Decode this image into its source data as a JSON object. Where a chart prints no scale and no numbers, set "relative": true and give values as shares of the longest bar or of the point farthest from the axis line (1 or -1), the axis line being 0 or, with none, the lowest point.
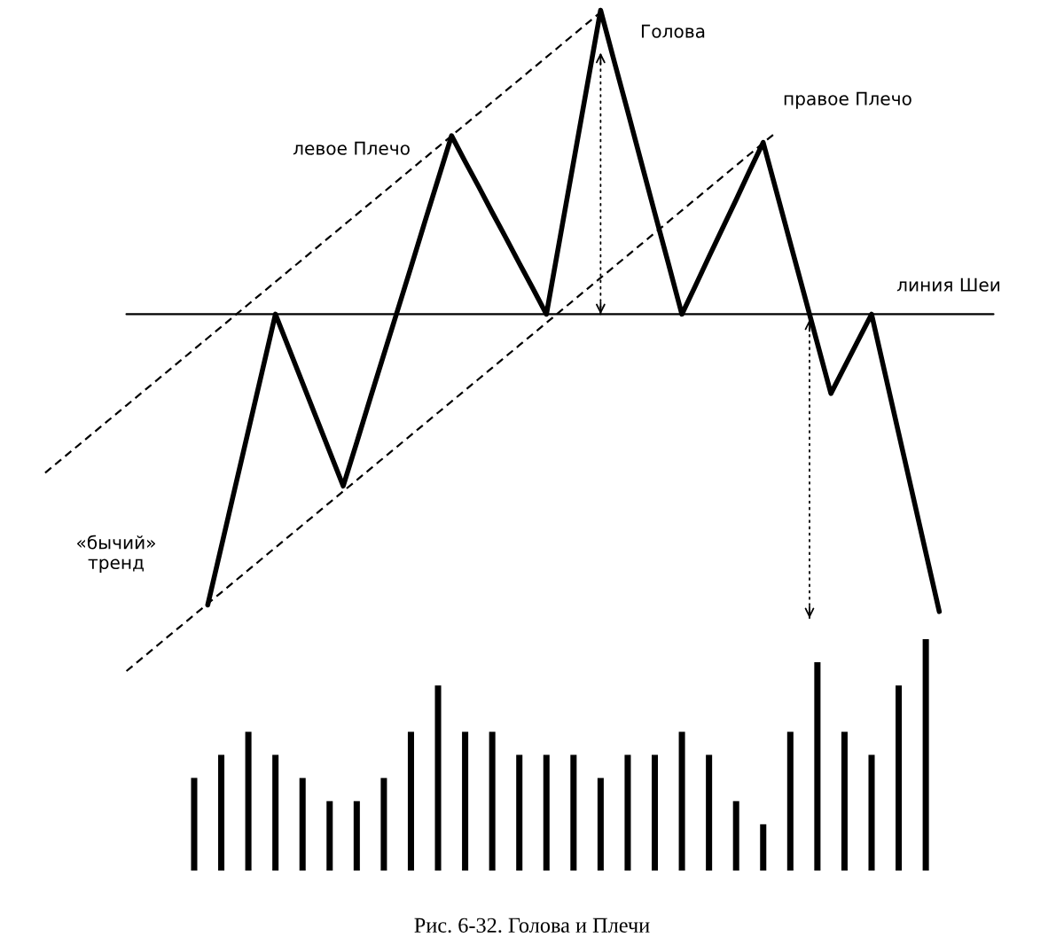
{
  "chart_data": [
    {
      "type": "line",
      "relative": true,
      "tick_labels": false,
      "categories": [
        null,
        null,
        null,
        null,
        null,
        null,
        null,
        null,
        null,
        null,
        null,
        null,
        null,
        null,
        null,
        null,
        null,
        null,
        null,
        null,
        null,
        null,
        null,
        null,
        null,
        null,
        null,
        null,
        null,
        null,
        null,
        null,
        null,
        null,
        null,
        null,
        null,
        null,
        null,
        null,
        null,
        null,
        null,
        null,
        null,
        null,
        null,
        null,
        null,
        null,
        null,
        null,
        null,
        null,
        null,
        null,
        null,
        null,
        null,
        null,
        null,
        null,
        null,
        null,
        null,
        null,
        null,
        null,
        null,
        null,
        null
      ],
      "series": [
        {
          "color": "#000000",
          "line_style": "solid",
          "values": [
            null,
            null,
            null,
            null,
            null,
            null,
            null,
            null,
            null,
            null,
            null,
            null,
            0.1,
            0.188,
            0.276,
            0.364,
            0.452,
            0.54,
            0.488,
            0.436,
            0.384,
            0.332,
            0.28,
            0.346,
            0.413,
            0.479,
            0.545,
            0.611,
            0.678,
            0.744,
            0.81,
            0.771,
            0.733,
            0.694,
            0.656,
            0.617,
            0.579,
            0.54,
            0.655,
            0.77,
            0.885,
            1.0,
            0.923,
            0.847,
            0.77,
            0.693,
            0.617,
            0.54,
            0.583,
            0.627,
            0.67,
            0.713,
            0.757,
            0.8,
            0.724,
            0.648,
            0.572,
            0.496,
            0.42,
            0.46,
            0.5,
            0.54,
            0.45,
            0.36,
            0.27,
            0.18,
            0.09,
            null,
            null,
            null,
            null
          ]
        },
        {
          "type": "line",
          "color": "#000000",
          "line_style": "dashed",
          "values": [
            0.3,
            0.317,
            0.334,
            0.351,
            0.368,
            0.385,
            0.402,
            0.419,
            0.436,
            0.453,
            0.47,
            0.487,
            0.504,
            0.521,
            0.538,
            0.555,
            0.572,
            0.589,
            0.606,
            0.623,
            0.64,
            0.657,
            0.674,
            0.691,
            0.708,
            0.725,
            0.742,
            0.759,
            0.776,
            0.793,
            0.81,
            0.827,
            0.844,
            0.861,
            0.878,
            0.895,
            0.912,
            0.929,
            0.946,
            0.963,
            0.98,
            0.997,
            null,
            null,
            null,
            null,
            null,
            null,
            null,
            null,
            null,
            null,
            null,
            null,
            null,
            null,
            null,
            null,
            null,
            null,
            null,
            null,
            null,
            null,
            null,
            null,
            null,
            null,
            null,
            null,
            null
          ]
        },
        {
          "type": "line",
          "color": "#000000",
          "line_style": "dashed",
          "values": [
            null,
            null,
            null,
            null,
            null,
            null,
            0,
            0.017,
            0.034,
            0.051,
            0.068,
            0.085,
            0.102,
            0.119,
            0.136,
            0.153,
            0.17,
            0.187,
            0.204,
            0.221,
            0.238,
            0.255,
            0.272,
            0.289,
            0.306,
            0.323,
            0.34,
            0.357,
            0.374,
            0.391,
            0.408,
            0.425,
            0.442,
            0.459,
            0.476,
            0.493,
            0.51,
            0.527,
            0.544,
            0.561,
            0.578,
            0.595,
            0.612,
            0.629,
            0.646,
            0.663,
            0.68,
            0.697,
            0.714,
            0.731,
            0.748,
            0.765,
            0.782,
            0.799,
            0.816,
            null,
            null,
            null,
            null,
            null,
            null,
            null,
            null,
            null,
            null,
            null,
            null,
            null,
            null,
            null,
            null
          ]
        },
        {
          "type": "line",
          "color": "#000000",
          "line_style": "solid",
          "values": [
            null,
            null,
            null,
            null,
            null,
            null,
            0.54,
            0.54,
            0.54,
            0.54,
            0.54,
            0.54,
            0.54,
            0.54,
            0.54,
            0.54,
            0.54,
            0.54,
            0.54,
            0.54,
            0.54,
            0.54,
            0.54,
            0.54,
            0.54,
            0.54,
            0.54,
            0.54,
            0.54,
            0.54,
            0.54,
            0.54,
            0.54,
            0.54,
            0.54,
            0.54,
            0.54,
            0.54,
            0.54,
            0.54,
            0.54,
            0.54,
            0.54,
            0.54,
            0.54,
            0.54,
            0.54,
            0.54,
            0.54,
            0.54,
            0.54,
            0.54,
            0.54,
            0.54,
            0.54,
            0.54,
            0.54,
            0.54,
            0.54,
            0.54,
            0.54,
            0.54,
            0.54,
            0.54,
            0.54,
            0.54,
            0.54,
            0.54,
            0.54,
            0.54,
            0.54
          ]
        }
      ],
      "annotations": [
        "Голова",
        "левое Плечо",
        "правое Плечо",
        "линия Шеи",
        "«бычий»\nтренд"
      ]
    },
    {
      "type": "bar",
      "relative": true,
      "tick_labels": false,
      "categories": [
        null,
        null,
        null,
        null,
        null,
        null,
        null,
        null,
        null,
        null,
        null,
        null,
        null,
        null,
        null,
        null,
        null,
        null,
        null,
        null,
        null,
        null,
        null,
        null,
        null,
        null,
        null,
        null
      ],
      "values": [
        0.4,
        0.5,
        0.6,
        0.5,
        0.4,
        0.3,
        0.3,
        0.4,
        0.6,
        0.8,
        0.6,
        0.6,
        0.5,
        0.5,
        0.5,
        0.4,
        0.5,
        0.5,
        0.6,
        0.5,
        0.3,
        0.2,
        0.6,
        0.9,
        0.6,
        0.5,
        0.8,
        1.0
      ],
      "color": "#000000",
      "annotations": [
        "Рис. 6-32. Голова и Плечи"
      ]
    }
  ]
}
